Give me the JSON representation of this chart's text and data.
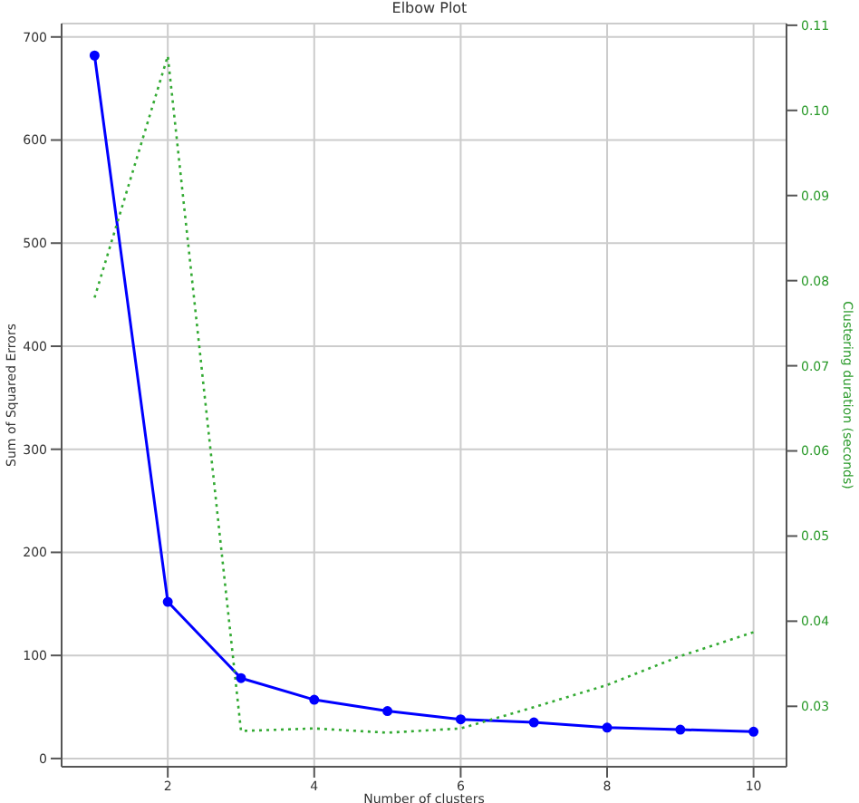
{
  "chart_data": {
    "type": "line",
    "title": "Elbow Plot",
    "xlabel": "Number of clusters",
    "ylabel": "Sum of Squared Errors",
    "y2label": "Clustering duration (seconds)",
    "x": [
      1,
      2,
      3,
      4,
      5,
      6,
      7,
      8,
      9,
      10
    ],
    "series": [
      {
        "color": "#0000ff",
        "marker": "circle",
        "line_style": "solid",
        "values": [
          682,
          152,
          78,
          57,
          46,
          38,
          35,
          30,
          28,
          26
        ]
      },
      {
        "color": "#33aa33",
        "marker": "none",
        "line_style": "dotted",
        "axis": "y2",
        "values": [
          0.078,
          0.1064,
          0.0271,
          0.0274,
          0.0269,
          0.0274,
          0.0299,
          0.0325,
          0.0359,
          0.0387
        ]
      }
    ],
    "xlim": [
      0.55,
      10.45
    ],
    "xticks": [
      2,
      4,
      6,
      8,
      10
    ],
    "ylim": [
      -8,
      713
    ],
    "yticks": [
      0,
      100,
      200,
      300,
      400,
      500,
      600,
      700
    ],
    "y2lim": [
      0.0229,
      0.1102
    ],
    "y2ticks": [
      0.03,
      0.04,
      0.05,
      0.06,
      0.07,
      0.08,
      0.09,
      {
        "value": 0.1,
        "label": "0.10"
      },
      0.11
    ],
    "grid": true,
    "legend": false
  }
}
